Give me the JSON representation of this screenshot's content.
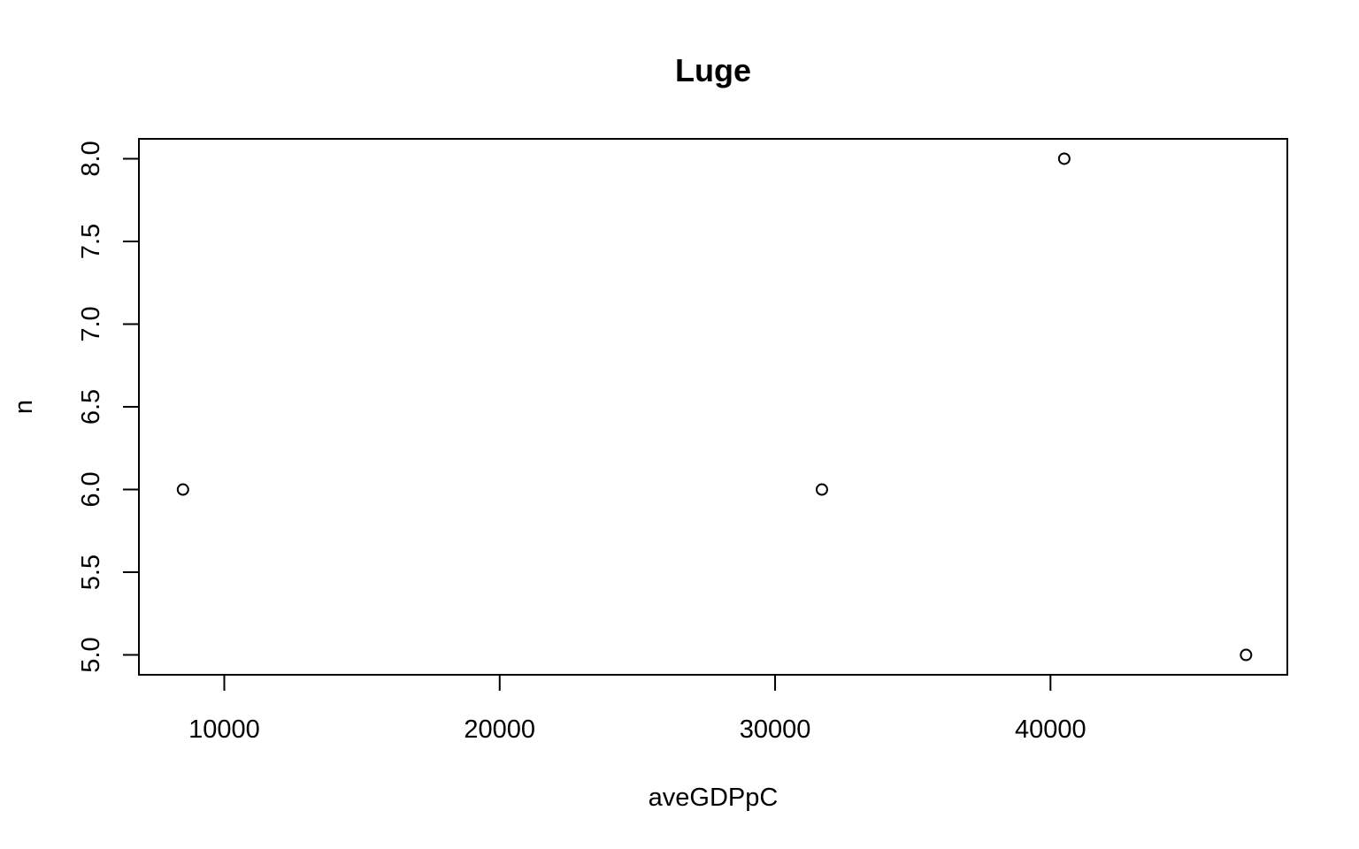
{
  "chart_data": {
    "type": "scatter",
    "title": "Luge",
    "xlabel": "aveGDPpC",
    "ylabel": "n",
    "xlim": [
      6900,
      48600
    ],
    "ylim": [
      4.88,
      8.12
    ],
    "xticks": [
      10000,
      20000,
      30000,
      40000
    ],
    "xtick_labels": [
      "10000",
      "20000",
      "30000",
      "40000"
    ],
    "yticks": [
      5.0,
      5.5,
      6.0,
      6.5,
      7.0,
      7.5,
      8.0
    ],
    "ytick_labels": [
      "5.0",
      "5.5",
      "6.0",
      "6.5",
      "7.0",
      "7.5",
      "8.0"
    ],
    "grid": false,
    "marker": "open-circle",
    "marker_color": "#000000",
    "points": [
      {
        "x": 8500,
        "y": 6.0
      },
      {
        "x": 31700,
        "y": 6.0
      },
      {
        "x": 40500,
        "y": 8.0
      },
      {
        "x": 47100,
        "y": 5.0
      }
    ]
  }
}
